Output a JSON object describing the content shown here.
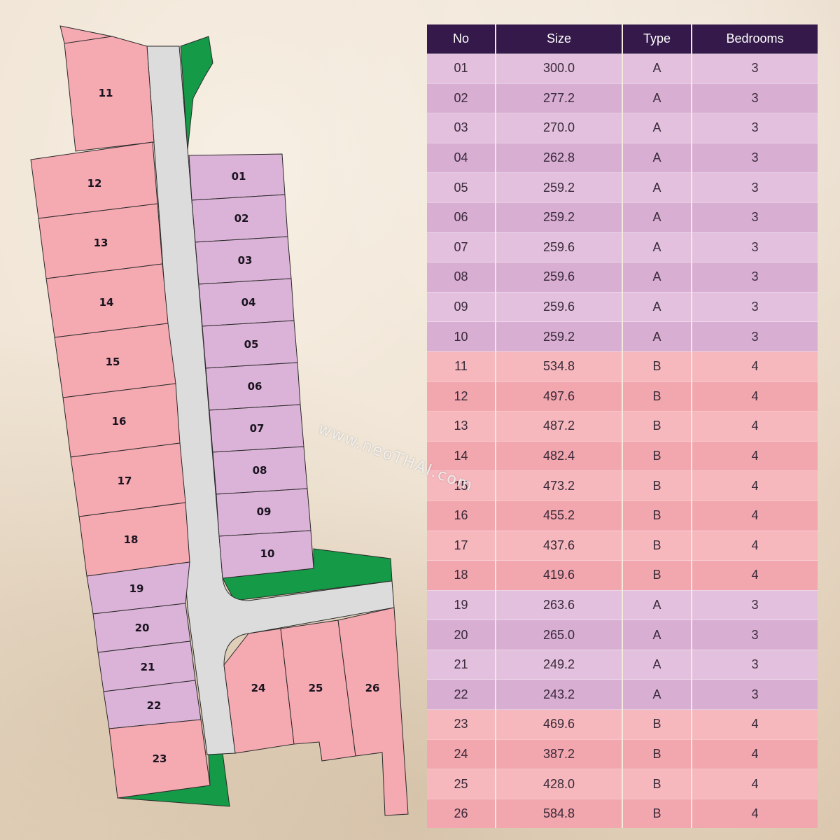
{
  "watermark": "www.neoTHAI.com",
  "table": {
    "headers": [
      "No",
      "Size",
      "Type",
      "Bedrooms"
    ],
    "rows": [
      [
        "01",
        "300.0",
        "A",
        "3"
      ],
      [
        "02",
        "277.2",
        "A",
        "3"
      ],
      [
        "03",
        "270.0",
        "A",
        "3"
      ],
      [
        "04",
        "262.8",
        "A",
        "3"
      ],
      [
        "05",
        "259.2",
        "A",
        "3"
      ],
      [
        "06",
        "259.2",
        "A",
        "3"
      ],
      [
        "07",
        "259.6",
        "A",
        "3"
      ],
      [
        "08",
        "259.6",
        "A",
        "3"
      ],
      [
        "09",
        "259.6",
        "A",
        "3"
      ],
      [
        "10",
        "259.2",
        "A",
        "3"
      ],
      [
        "11",
        "534.8",
        "B",
        "4"
      ],
      [
        "12",
        "497.6",
        "B",
        "4"
      ],
      [
        "13",
        "487.2",
        "B",
        "4"
      ],
      [
        "14",
        "482.4",
        "B",
        "4"
      ],
      [
        "15",
        "473.2",
        "B",
        "4"
      ],
      [
        "16",
        "455.2",
        "B",
        "4"
      ],
      [
        "17",
        "437.6",
        "B",
        "4"
      ],
      [
        "18",
        "419.6",
        "B",
        "4"
      ],
      [
        "19",
        "263.6",
        "A",
        "3"
      ],
      [
        "20",
        "265.0",
        "A",
        "3"
      ],
      [
        "21",
        "249.2",
        "A",
        "3"
      ],
      [
        "22",
        "243.2",
        "A",
        "3"
      ],
      [
        "23",
        "469.6",
        "B",
        "4"
      ],
      [
        "24",
        "387.2",
        "B",
        "4"
      ],
      [
        "25",
        "428.0",
        "B",
        "4"
      ],
      [
        "26",
        "584.8",
        "B",
        "4"
      ]
    ]
  },
  "plan": {
    "plot_labels": {
      "p01": "01",
      "p02": "02",
      "p03": "03",
      "p04": "04",
      "p05": "05",
      "p06": "06",
      "p07": "07",
      "p08": "08",
      "p09": "09",
      "p10": "10",
      "p11": "11",
      "p12": "12",
      "p13": "13",
      "p14": "14",
      "p15": "15",
      "p16": "16",
      "p17": "17",
      "p18": "18",
      "p19": "19",
      "p20": "20",
      "p21": "21",
      "p22": "22",
      "p23": "23",
      "p24": "24",
      "p25": "25",
      "p26": "26"
    }
  },
  "colors": {
    "type_a": "#dcb3d8",
    "type_b": "#f5a9b1",
    "road": "#dcdcdc",
    "green_space": "#159a48",
    "header": "#34194a"
  }
}
